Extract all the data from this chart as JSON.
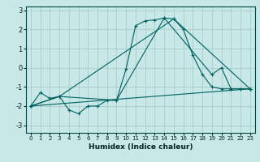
{
  "xlabel": "Humidex (Indice chaleur)",
  "ylabel": "",
  "xlim": [
    -0.5,
    23.5
  ],
  "ylim": [
    -3.4,
    3.2
  ],
  "xticks": [
    0,
    1,
    2,
    3,
    4,
    5,
    6,
    7,
    8,
    9,
    10,
    11,
    12,
    13,
    14,
    15,
    16,
    17,
    18,
    19,
    20,
    21,
    22,
    23
  ],
  "yticks": [
    -3,
    -2,
    -1,
    0,
    1,
    2,
    3
  ],
  "background_color": "#c8e8e8",
  "grid_color": "#a8cccc",
  "line_color": "#006060",
  "lines": [
    {
      "x": [
        0,
        1,
        2,
        3,
        4,
        5,
        6,
        7,
        8,
        9,
        10,
        11,
        12,
        13,
        14,
        15,
        16,
        17,
        18,
        19,
        20,
        21,
        22,
        23
      ],
      "y": [
        -2.0,
        -1.3,
        -1.6,
        -1.5,
        -2.2,
        -2.4,
        -2.0,
        -2.0,
        -1.7,
        -1.7,
        -0.05,
        2.2,
        2.45,
        2.5,
        2.6,
        2.55,
        2.0,
        0.65,
        -0.35,
        -1.0,
        -1.1,
        -1.1,
        -1.1,
        -1.1
      ]
    },
    {
      "x": [
        0,
        3,
        15,
        23
      ],
      "y": [
        -2.0,
        -1.5,
        2.55,
        -1.1
      ]
    },
    {
      "x": [
        0,
        23
      ],
      "y": [
        -2.0,
        -1.1
      ]
    },
    {
      "x": [
        0,
        3,
        9,
        14,
        19,
        20,
        21,
        22,
        23
      ],
      "y": [
        -2.0,
        -1.5,
        -1.7,
        2.6,
        -0.35,
        0.0,
        -1.1,
        -1.1,
        -1.1
      ]
    }
  ]
}
